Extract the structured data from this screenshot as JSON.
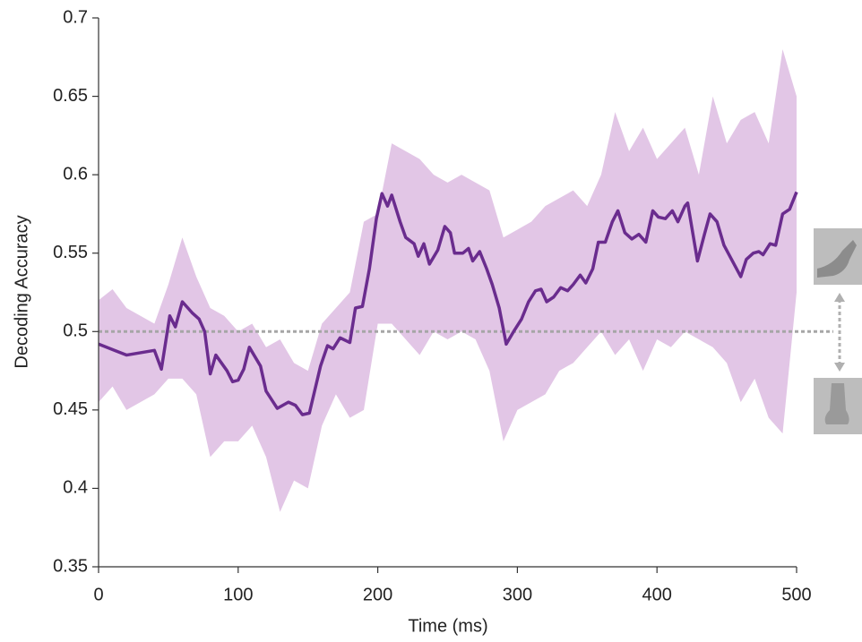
{
  "chart_data": {
    "type": "line",
    "xlabel": "Time (ms)",
    "ylabel": "Decoding Accuracy",
    "xlim": [
      0,
      500
    ],
    "xticks": [
      0,
      100,
      200,
      300,
      400,
      500
    ],
    "ylim": [
      0.35,
      0.7
    ],
    "yticks": [
      0.35,
      0.4,
      0.45,
      0.5,
      0.55,
      0.6,
      0.65,
      0.7
    ],
    "reference_line": 0.5,
    "reference_color": "#a6a6a6",
    "x": [
      0,
      20,
      40,
      45,
      51,
      55,
      60,
      67,
      72,
      76,
      80,
      84,
      92,
      96,
      100,
      104,
      108,
      116,
      120,
      128,
      136,
      141,
      146,
      151,
      159,
      164,
      168,
      173,
      180,
      184,
      189,
      194,
      199,
      203,
      207,
      210,
      216,
      220,
      226,
      229,
      233,
      237,
      243,
      248,
      252,
      255,
      261,
      265,
      268,
      273,
      278,
      282,
      287,
      292,
      298,
      303,
      308,
      313,
      317,
      321,
      326,
      331,
      336,
      340,
      345,
      349,
      354,
      358,
      363,
      368,
      372,
      377,
      382,
      387,
      392,
      397,
      401,
      406,
      411,
      415,
      420,
      422,
      429,
      434,
      438,
      443,
      448,
      454,
      460,
      464,
      469,
      473,
      476,
      481,
      485,
      490,
      495,
      500
    ],
    "series": [
      {
        "color": "#6a2c8e",
        "values": [
          0.492,
          0.485,
          0.488,
          0.476,
          0.51,
          0.503,
          0.519,
          0.512,
          0.508,
          0.5,
          0.473,
          0.485,
          0.475,
          0.468,
          0.469,
          0.476,
          0.49,
          0.478,
          0.462,
          0.451,
          0.455,
          0.453,
          0.447,
          0.448,
          0.478,
          0.491,
          0.489,
          0.496,
          0.493,
          0.515,
          0.516,
          0.54,
          0.572,
          0.588,
          0.58,
          0.587,
          0.57,
          0.56,
          0.556,
          0.548,
          0.556,
          0.543,
          0.552,
          0.567,
          0.563,
          0.55,
          0.55,
          0.553,
          0.545,
          0.551,
          0.54,
          0.53,
          0.515,
          0.492,
          0.501,
          0.508,
          0.519,
          0.526,
          0.527,
          0.519,
          0.522,
          0.528,
          0.526,
          0.53,
          0.536,
          0.531,
          0.54,
          0.557,
          0.557,
          0.57,
          0.577,
          0.563,
          0.559,
          0.562,
          0.557,
          0.577,
          0.573,
          0.572,
          0.577,
          0.57,
          0.58,
          0.582,
          0.545,
          0.562,
          0.575,
          0.57,
          0.555,
          0.545,
          0.535,
          0.546,
          0.55,
          0.551,
          0.549,
          0.556,
          0.555,
          0.575,
          0.578,
          0.589
        ]
      }
    ],
    "band": {
      "color": "#e2c6e6",
      "x": [
        0,
        10,
        20,
        30,
        40,
        50,
        60,
        70,
        80,
        90,
        100,
        110,
        120,
        130,
        140,
        150,
        160,
        170,
        180,
        190,
        200,
        210,
        220,
        230,
        240,
        250,
        260,
        270,
        280,
        290,
        300,
        310,
        320,
        330,
        340,
        350,
        360,
        370,
        380,
        390,
        400,
        410,
        420,
        430,
        440,
        450,
        460,
        470,
        480,
        490,
        500
      ],
      "upper": [
        0.52,
        0.527,
        0.515,
        0.51,
        0.505,
        0.53,
        0.56,
        0.535,
        0.515,
        0.51,
        0.5,
        0.505,
        0.49,
        0.495,
        0.48,
        0.475,
        0.505,
        0.515,
        0.525,
        0.57,
        0.575,
        0.62,
        0.615,
        0.61,
        0.6,
        0.595,
        0.6,
        0.595,
        0.59,
        0.56,
        0.565,
        0.57,
        0.58,
        0.585,
        0.59,
        0.58,
        0.6,
        0.64,
        0.615,
        0.63,
        0.61,
        0.62,
        0.63,
        0.6,
        0.65,
        0.62,
        0.635,
        0.64,
        0.62,
        0.68,
        0.65
      ],
      "lower": [
        0.455,
        0.465,
        0.45,
        0.455,
        0.46,
        0.47,
        0.47,
        0.46,
        0.42,
        0.43,
        0.43,
        0.44,
        0.42,
        0.385,
        0.405,
        0.4,
        0.44,
        0.46,
        0.445,
        0.45,
        0.505,
        0.505,
        0.495,
        0.485,
        0.5,
        0.495,
        0.5,
        0.495,
        0.475,
        0.43,
        0.45,
        0.455,
        0.46,
        0.475,
        0.48,
        0.49,
        0.5,
        0.485,
        0.495,
        0.475,
        0.495,
        0.49,
        0.5,
        0.495,
        0.49,
        0.48,
        0.455,
        0.47,
        0.445,
        0.435,
        0.525
      ]
    }
  }
}
